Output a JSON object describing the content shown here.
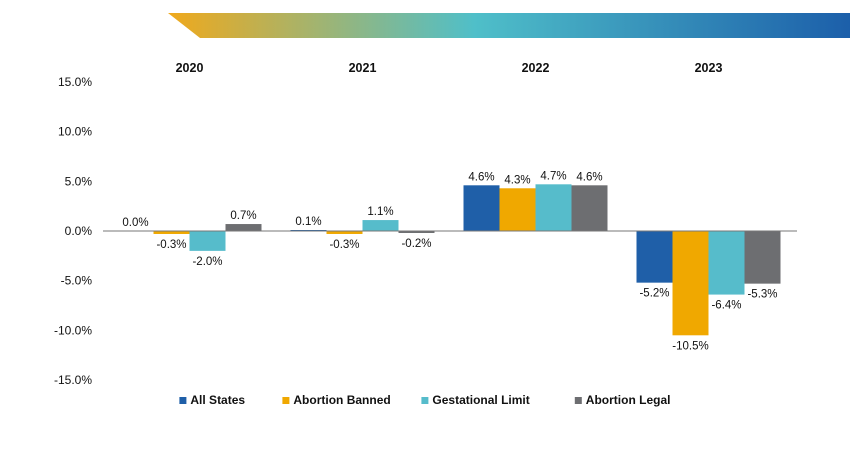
{
  "chart_data": {
    "type": "bar",
    "categories": [
      "2020",
      "2021",
      "2022",
      "2023"
    ],
    "ylim": [
      -15,
      15
    ],
    "yticks": [
      {
        "value": 15,
        "label": "15.0%"
      },
      {
        "value": 10,
        "label": "10.0%"
      },
      {
        "value": 5,
        "label": "5.0%"
      },
      {
        "value": 0,
        "label": "0.0%"
      },
      {
        "value": -5,
        "label": "-5.0%"
      },
      {
        "value": -10,
        "label": "-10.0%"
      },
      {
        "value": -15,
        "label": "-15.0%"
      }
    ],
    "legend_position": "bottom",
    "series": [
      {
        "name": "All States",
        "color": "#1f5fa8",
        "values": [
          0.0,
          0.1,
          4.6,
          -5.2
        ],
        "labels": [
          "0.0%",
          "0.1%",
          "4.6%",
          "-5.2%"
        ]
      },
      {
        "name": "Abortion Banned",
        "color": "#f0a800",
        "values": [
          -0.3,
          -0.3,
          4.3,
          -10.5
        ],
        "labels": [
          "-0.3%",
          "-0.3%",
          "4.3%",
          "-10.5%"
        ]
      },
      {
        "name": "Gestational Limit",
        "color": "#56bccb",
        "values": [
          -2.0,
          1.1,
          4.7,
          -6.4
        ],
        "labels": [
          "-2.0%",
          "1.1%",
          "4.7%",
          "-6.4%"
        ]
      },
      {
        "name": "Abortion Legal",
        "color": "#6d6e71",
        "values": [
          0.7,
          -0.2,
          4.6,
          -5.3
        ],
        "labels": [
          "0.7%",
          "-0.2%",
          "4.6%",
          "-5.3%"
        ]
      }
    ]
  },
  "decor": {
    "banner_colors": [
      "#f0a91c",
      "#4fbfc9",
      "#1c5faa"
    ]
  }
}
